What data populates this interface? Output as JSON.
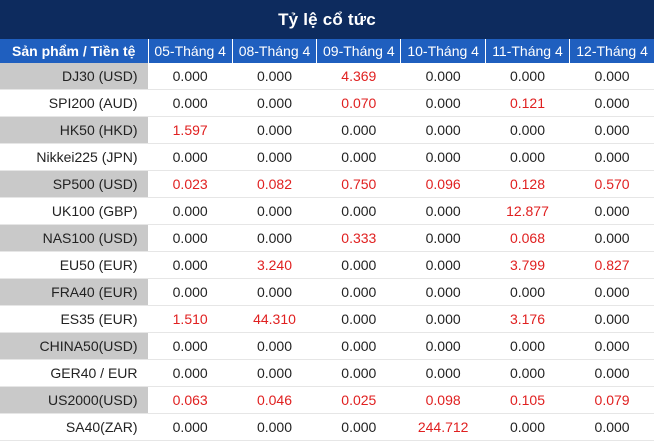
{
  "title": "Tỷ lệ cổ tức",
  "accent": "#e02020",
  "header_bg": "#0d2b5e",
  "column_header_bg": "#1f5fbf",
  "columns": [
    "Sản phẩm / Tiền tệ",
    "05-Tháng 4",
    "08-Tháng 4",
    "09-Tháng 4",
    "10-Tháng 4",
    "11-Tháng 4",
    "12-Tháng 4"
  ],
  "rows": [
    {
      "product": "DJ30 (USD)",
      "values": [
        "0.000",
        "0.000",
        "4.369",
        "0.000",
        "0.000",
        "0.000"
      ]
    },
    {
      "product": "SPI200 (AUD)",
      "values": [
        "0.000",
        "0.000",
        "0.070",
        "0.000",
        "0.121",
        "0.000"
      ]
    },
    {
      "product": "HK50 (HKD)",
      "values": [
        "1.597",
        "0.000",
        "0.000",
        "0.000",
        "0.000",
        "0.000"
      ]
    },
    {
      "product": "Nikkei225 (JPN)",
      "values": [
        "0.000",
        "0.000",
        "0.000",
        "0.000",
        "0.000",
        "0.000"
      ]
    },
    {
      "product": "SP500 (USD)",
      "values": [
        "0.023",
        "0.082",
        "0.750",
        "0.096",
        "0.128",
        "0.570"
      ]
    },
    {
      "product": "UK100 (GBP)",
      "values": [
        "0.000",
        "0.000",
        "0.000",
        "0.000",
        "12.877",
        "0.000"
      ]
    },
    {
      "product": "NAS100 (USD)",
      "values": [
        "0.000",
        "0.000",
        "0.333",
        "0.000",
        "0.068",
        "0.000"
      ]
    },
    {
      "product": "EU50 (EUR)",
      "values": [
        "0.000",
        "3.240",
        "0.000",
        "0.000",
        "3.799",
        "0.827"
      ]
    },
    {
      "product": "FRA40 (EUR)",
      "values": [
        "0.000",
        "0.000",
        "0.000",
        "0.000",
        "0.000",
        "0.000"
      ]
    },
    {
      "product": "ES35 (EUR)",
      "values": [
        "1.510",
        "44.310",
        "0.000",
        "0.000",
        "3.176",
        "0.000"
      ]
    },
    {
      "product": "CHINA50(USD)",
      "values": [
        "0.000",
        "0.000",
        "0.000",
        "0.000",
        "0.000",
        "0.000"
      ]
    },
    {
      "product": "GER40 / EUR",
      "values": [
        "0.000",
        "0.000",
        "0.000",
        "0.000",
        "0.000",
        "0.000"
      ]
    },
    {
      "product": "US2000(USD)",
      "values": [
        "0.063",
        "0.046",
        "0.025",
        "0.098",
        "0.105",
        "0.079"
      ]
    },
    {
      "product": "SA40(ZAR)",
      "values": [
        "0.000",
        "0.000",
        "0.000",
        "244.712",
        "0.000",
        "0.000"
      ]
    }
  ]
}
